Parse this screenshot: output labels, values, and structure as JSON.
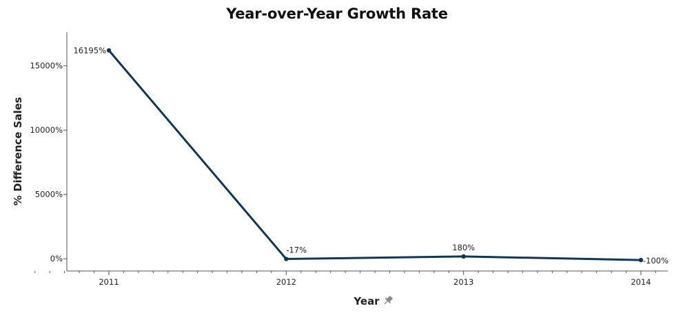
{
  "chart_data": {
    "type": "line",
    "title": "Year-over-Year Growth Rate",
    "xlabel": "Year",
    "ylabel": "% Difference Sales",
    "categories": [
      "2011",
      "2012",
      "2013",
      "2014"
    ],
    "series": [
      {
        "values": [
          16195,
          -17,
          180,
          -100
        ],
        "labels": [
          "16195%",
          "-17%",
          "180%",
          "-100%"
        ],
        "color": "#0e3659"
      }
    ],
    "y_ticks": [
      0,
      5000,
      10000,
      15000
    ],
    "y_tick_labels": [
      "0%",
      "5000%",
      "10000%",
      "15000%"
    ],
    "ylim": [
      -950,
      17600
    ],
    "grid": false,
    "legend": "none",
    "x_axis_pin_icon": "pin-icon"
  }
}
